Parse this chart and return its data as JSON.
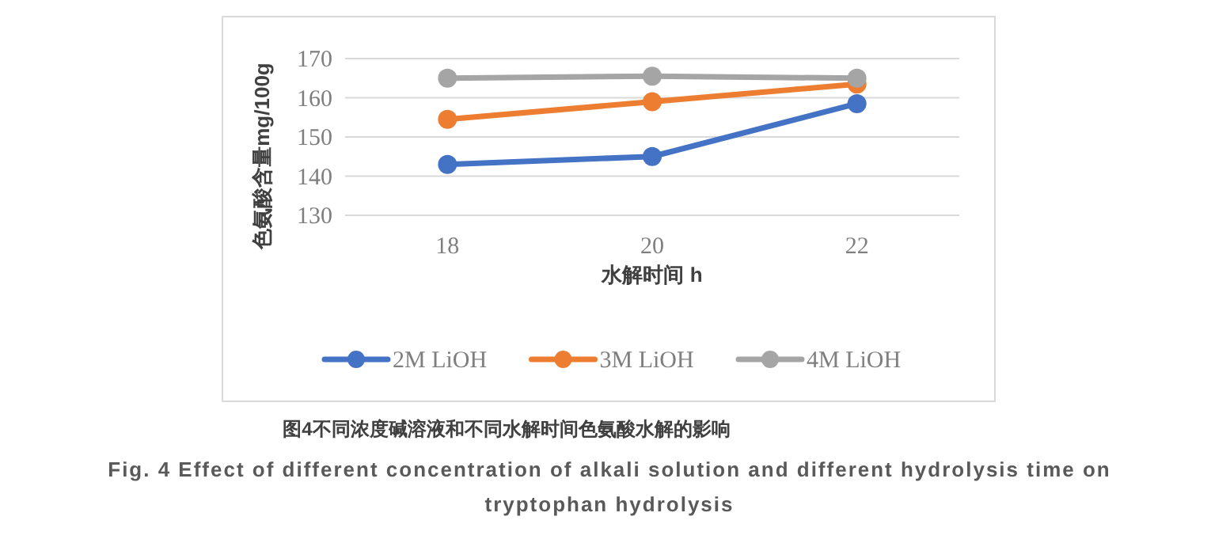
{
  "chart_data": {
    "type": "line",
    "xlabel": "水解时间 h",
    "ylabel": "色氨酸含量mg/100g",
    "categories": [
      "18",
      "20",
      "22"
    ],
    "series": [
      {
        "name": "2M LiOH",
        "color": "#4472c4",
        "values": [
          143,
          145,
          158.5
        ]
      },
      {
        "name": "3M LiOH",
        "color": "#ed7d31",
        "values": [
          154.5,
          159,
          163.5
        ]
      },
      {
        "name": "4M LiOH",
        "color": "#a5a5a5",
        "values": [
          165,
          165.5,
          165
        ]
      }
    ],
    "ylim": [
      130,
      170
    ],
    "yticks": [
      130,
      140,
      150,
      160,
      170
    ],
    "grid": "y",
    "legend": "bottom",
    "marker": "circle",
    "line_style": "solid",
    "annotations": [
      "图4不同浓度碱溶液和不同水解时间色氨酸水解的影响",
      "Fig. 4 Effect of different concentration of alkali solution and different hydrolysis time on tryptophan hydrolysis"
    ]
  }
}
